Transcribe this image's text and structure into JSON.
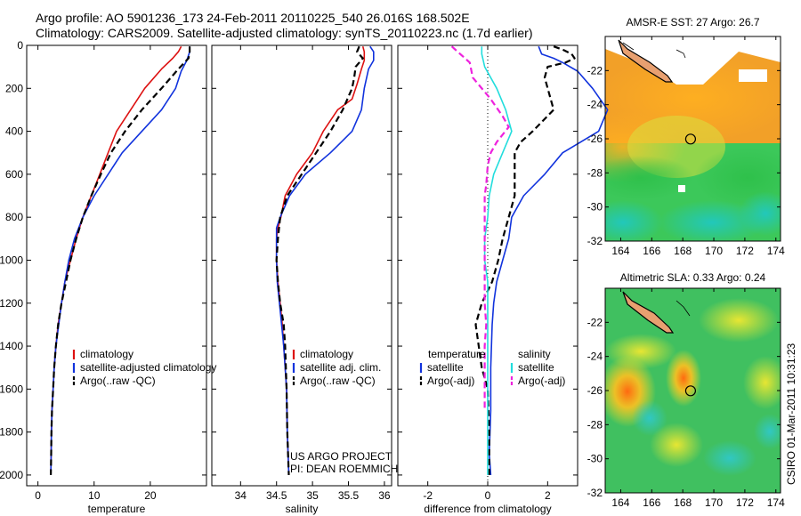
{
  "header": {
    "line1": "Argo profile: AO 5901236_173 24-Feb-2011 20110225_540 26.016S 168.502E",
    "line2": "Climatology: CARS2009. Satellite-adjusted climatology: synTS_20110223.nc (1.7d earlier)"
  },
  "stamp": "CSIRO 01-Mar-2011 10:31:23",
  "colors": {
    "red": "#dd1111",
    "blue": "#1133dd",
    "black": "#000000",
    "cyan": "#22dddd",
    "magenta": "#ee22dd"
  },
  "chart_data": [
    {
      "type": "line",
      "name": "temperature",
      "xlabel": "temperature",
      "ylabel": "",
      "xlim": [
        -2,
        30
      ],
      "ylim": [
        2050,
        0
      ],
      "ydir": "reverse",
      "xticks": [
        0,
        10,
        20
      ],
      "yticks": [
        0,
        200,
        400,
        600,
        800,
        1000,
        1200,
        1400,
        1600,
        1800,
        2000
      ],
      "legend": {
        "placement": "lower-middle",
        "entries": [
          "climatology",
          "satellite-adjusted climatology",
          "Argo(..raw -QC)"
        ]
      },
      "series": [
        {
          "name": "climatology",
          "color": "red",
          "dash": "solid",
          "points": [
            [
              25.5,
              5
            ],
            [
              25,
              30
            ],
            [
              24,
              60
            ],
            [
              22,
              110
            ],
            [
              19,
              200
            ],
            [
              16.5,
              300
            ],
            [
              14,
              400
            ],
            [
              12.5,
              500
            ],
            [
              11,
              600
            ],
            [
              9.5,
              700
            ],
            [
              8,
              800
            ],
            [
              6.8,
              900
            ],
            [
              5.8,
              1000
            ],
            [
              4.8,
              1100
            ],
            [
              4.2,
              1200
            ],
            [
              3.6,
              1300
            ],
            [
              3.2,
              1400
            ],
            [
              2.9,
              1500
            ],
            [
              2.7,
              1600
            ],
            [
              2.5,
              1700
            ],
            [
              2.4,
              1800
            ],
            [
              2.35,
              1900
            ],
            [
              2.3,
              2000
            ]
          ]
        },
        {
          "name": "satellite-adjusted climatology",
          "color": "blue",
          "dash": "solid",
          "points": [
            [
              27,
              5
            ],
            [
              27,
              30
            ],
            [
              26.5,
              70
            ],
            [
              25.5,
              120
            ],
            [
              24.5,
              200
            ],
            [
              22,
              300
            ],
            [
              18.5,
              400
            ],
            [
              15,
              500
            ],
            [
              12.5,
              600
            ],
            [
              10,
              700
            ],
            [
              8,
              800
            ],
            [
              6.5,
              900
            ],
            [
              5.5,
              1000
            ],
            [
              4.8,
              1100
            ],
            [
              4.2,
              1200
            ],
            [
              3.7,
              1300
            ],
            [
              3.2,
              1400
            ],
            [
              2.9,
              1500
            ],
            [
              2.7,
              1600
            ],
            [
              2.5,
              1700
            ],
            [
              2.4,
              1800
            ],
            [
              2.35,
              1900
            ],
            [
              2.3,
              2000
            ]
          ]
        },
        {
          "name": "Argo(..raw -QC)",
          "color": "black",
          "dash": "dashed",
          "points": [
            [
              27,
              5
            ],
            [
              27,
              30
            ],
            [
              26.8,
              60
            ],
            [
              25,
              110
            ],
            [
              22,
              200
            ],
            [
              18.5,
              300
            ],
            [
              15.5,
              400
            ],
            [
              13,
              500
            ],
            [
              11.2,
              600
            ],
            [
              9.5,
              700
            ],
            [
              8,
              800
            ],
            [
              6.8,
              900
            ],
            [
              5.8,
              1000
            ],
            [
              5,
              1100
            ],
            [
              4.2,
              1200
            ],
            [
              3.6,
              1300
            ],
            [
              3.2,
              1400
            ],
            [
              2.9,
              1500
            ],
            [
              2.7,
              1600
            ],
            [
              2.5,
              1700
            ],
            [
              2.4,
              1800
            ],
            [
              2.35,
              1900
            ],
            [
              2.3,
              2000
            ]
          ]
        }
      ]
    },
    {
      "type": "line",
      "name": "salinity",
      "xlabel": "salinity",
      "ylabel": "",
      "xlim": [
        33.6,
        36.1
      ],
      "ylim": [
        2050,
        0
      ],
      "ydir": "reverse",
      "xticks": [
        34,
        34.5,
        35,
        35.5,
        36
      ],
      "yticks": [
        0,
        200,
        400,
        600,
        800,
        1000,
        1200,
        1400,
        1600,
        1800,
        2000
      ],
      "legend": {
        "placement": "lower-right",
        "entries": [
          "climatology",
          "satellite adj. clim.",
          "Argo(..raw -QC)"
        ]
      },
      "annotation": [
        "US ARGO PROJECT",
        "PI: DEAN ROEMMICH"
      ],
      "series": [
        {
          "name": "climatology",
          "color": "red",
          "dash": "solid",
          "points": [
            [
              35.7,
              5
            ],
            [
              35.72,
              30
            ],
            [
              35.72,
              70
            ],
            [
              35.68,
              110
            ],
            [
              35.62,
              180
            ],
            [
              35.55,
              250
            ],
            [
              35.35,
              300
            ],
            [
              35.15,
              400
            ],
            [
              35,
              500
            ],
            [
              34.78,
              600
            ],
            [
              34.62,
              700
            ],
            [
              34.56,
              800
            ],
            [
              34.52,
              850
            ],
            [
              34.5,
              900
            ],
            [
              34.5,
              1000
            ],
            [
              34.52,
              1100
            ],
            [
              34.55,
              1200
            ],
            [
              34.58,
              1300
            ],
            [
              34.6,
              1400
            ],
            [
              34.62,
              1500
            ],
            [
              34.64,
              1600
            ],
            [
              34.65,
              1800
            ],
            [
              34.67,
              2000
            ]
          ]
        },
        {
          "name": "satellite adj. clim.",
          "color": "blue",
          "dash": "solid",
          "points": [
            [
              35.8,
              5
            ],
            [
              35.85,
              30
            ],
            [
              35.85,
              70
            ],
            [
              35.78,
              110
            ],
            [
              35.72,
              200
            ],
            [
              35.68,
              300
            ],
            [
              35.55,
              400
            ],
            [
              35.25,
              500
            ],
            [
              34.9,
              600
            ],
            [
              34.68,
              700
            ],
            [
              34.55,
              800
            ],
            [
              34.5,
              850
            ],
            [
              34.5,
              900
            ],
            [
              34.5,
              1000
            ],
            [
              34.51,
              1100
            ],
            [
              34.54,
              1200
            ],
            [
              34.57,
              1300
            ],
            [
              34.6,
              1400
            ],
            [
              34.62,
              1500
            ],
            [
              34.64,
              1600
            ],
            [
              34.65,
              1800
            ],
            [
              34.67,
              2000
            ]
          ]
        },
        {
          "name": "Argo(..raw -QC)",
          "color": "black",
          "dash": "dashed",
          "points": [
            [
              35.65,
              5
            ],
            [
              35.62,
              30
            ],
            [
              35.7,
              60
            ],
            [
              35.6,
              100
            ],
            [
              35.58,
              150
            ],
            [
              35.55,
              200
            ],
            [
              35.42,
              300
            ],
            [
              35.25,
              400
            ],
            [
              35.05,
              500
            ],
            [
              34.85,
              600
            ],
            [
              34.65,
              700
            ],
            [
              34.55,
              800
            ],
            [
              34.52,
              900
            ],
            [
              34.5,
              1000
            ],
            [
              34.52,
              1100
            ],
            [
              34.55,
              1200
            ],
            [
              34.6,
              1300
            ],
            [
              34.62,
              1400
            ],
            [
              34.63,
              1500
            ],
            [
              34.64,
              1600
            ],
            [
              34.65,
              1800
            ],
            [
              34.67,
              2000
            ]
          ]
        }
      ]
    },
    {
      "type": "line",
      "name": "difference",
      "xlabel": "difference from climatology",
      "ylabel": "",
      "xlim": [
        -3,
        3
      ],
      "ylim": [
        2050,
        0
      ],
      "ydir": "reverse",
      "xticks": [
        -2,
        0,
        2
      ],
      "yticks": [
        0,
        200,
        400,
        600,
        800,
        1000,
        1200,
        1400,
        1600,
        1800,
        2000
      ],
      "legend": {
        "placement": "lower",
        "entries": [
          "temperature",
          "satellite",
          "Argo(-adj)",
          "salinity",
          "satellite",
          "Argo(-adj)"
        ]
      },
      "series": [
        {
          "name": "temperature satellite",
          "color": "blue",
          "dash": "solid",
          "points": [
            [
              1.7,
              5
            ],
            [
              1.8,
              40
            ],
            [
              2.2,
              60
            ],
            [
              2.5,
              80
            ],
            [
              3,
              120
            ],
            [
              3.5,
              200
            ],
            [
              4,
              300
            ],
            [
              3.7,
              400
            ],
            [
              2.5,
              500
            ],
            [
              1.9,
              600
            ],
            [
              1.2,
              700
            ],
            [
              0.8,
              800
            ],
            [
              0.7,
              900
            ],
            [
              0.5,
              1000
            ],
            [
              0.3,
              1100
            ],
            [
              0.2,
              1200
            ],
            [
              0.15,
              1300
            ],
            [
              0.1,
              1500
            ],
            [
              0.1,
              1700
            ],
            [
              0.05,
              1900
            ],
            [
              0.1,
              2000
            ]
          ]
        },
        {
          "name": "temperature Argo(-adj)",
          "color": "black",
          "dash": "dashed",
          "points": [
            [
              2.2,
              5
            ],
            [
              2.5,
              20
            ],
            [
              2.8,
              40
            ],
            [
              2.9,
              60
            ],
            [
              2.6,
              80
            ],
            [
              2,
              100
            ],
            [
              1.9,
              150
            ],
            [
              2.2,
              300
            ],
            [
              1.5,
              400
            ],
            [
              1.1,
              450
            ],
            [
              0.9,
              500
            ],
            [
              0.9,
              600
            ],
            [
              0.9,
              700
            ],
            [
              0.7,
              800
            ],
            [
              0.5,
              900
            ],
            [
              0.35,
              1000
            ],
            [
              0.15,
              1100
            ],
            [
              -0.2,
              1200
            ],
            [
              -0.4,
              1300
            ],
            [
              -0.3,
              1400
            ],
            [
              -0.2,
              1500
            ],
            [
              0,
              1600
            ],
            [
              0.05,
              1800
            ],
            [
              0.05,
              2000
            ]
          ]
        },
        {
          "name": "salinity satellite",
          "color": "cyan",
          "dash": "solid",
          "points": [
            [
              -0.2,
              5
            ],
            [
              -0.2,
              40
            ],
            [
              -0.1,
              100
            ],
            [
              0.3,
              200
            ],
            [
              0.6,
              300
            ],
            [
              0.8,
              400
            ],
            [
              0.5,
              500
            ],
            [
              0.2,
              600
            ],
            [
              0.05,
              700
            ],
            [
              0,
              800
            ],
            [
              -0.1,
              900
            ],
            [
              -0.1,
              1000
            ],
            [
              0,
              1100
            ],
            [
              0,
              1200
            ],
            [
              0,
              1400
            ],
            [
              0,
              1600
            ],
            [
              0,
              1800
            ],
            [
              0,
              2000
            ]
          ]
        },
        {
          "name": "salinity Argo(-adj)",
          "color": "magenta",
          "dash": "dashed",
          "points": [
            [
              -1.2,
              5
            ],
            [
              -1,
              30
            ],
            [
              -0.6,
              80
            ],
            [
              -0.5,
              150
            ],
            [
              0.1,
              250
            ],
            [
              0.5,
              330
            ],
            [
              0.7,
              380
            ],
            [
              0.3,
              450
            ],
            [
              0.1,
              500
            ],
            [
              0,
              560
            ],
            [
              -0.05,
              650
            ],
            [
              -0.1,
              700
            ],
            [
              -0.1,
              800
            ],
            [
              -0.1,
              1000
            ],
            [
              -0.1,
              1200
            ],
            [
              -0.05,
              1300
            ],
            [
              -0.1,
              1400
            ],
            [
              -0.1,
              1550
            ],
            [
              -0.1,
              1700
            ]
          ]
        }
      ]
    },
    {
      "type": "heatmap",
      "name": "AMSR-E SST",
      "title": "AMSR-E SST: 27 Argo: 26.7",
      "xlim": [
        163,
        174.3
      ],
      "ylim": [
        -32,
        -20
      ],
      "xticks": [
        164,
        166,
        168,
        170,
        172,
        174
      ],
      "yticks": [
        -22,
        -24,
        -26,
        -28,
        -30,
        -32
      ],
      "marker": {
        "lon": 168.502,
        "lat": -26.016
      }
    },
    {
      "type": "heatmap",
      "name": "Altimetric SLA",
      "title": "Altimetric SLA: 0.33 Argo: 0.24",
      "xlim": [
        163,
        174.3
      ],
      "ylim": [
        -32,
        -20
      ],
      "xticks": [
        164,
        166,
        168,
        170,
        172,
        174
      ],
      "yticks": [
        -22,
        -24,
        -26,
        -28,
        -30,
        -32
      ],
      "marker": {
        "lon": 168.502,
        "lat": -26.016
      }
    }
  ]
}
